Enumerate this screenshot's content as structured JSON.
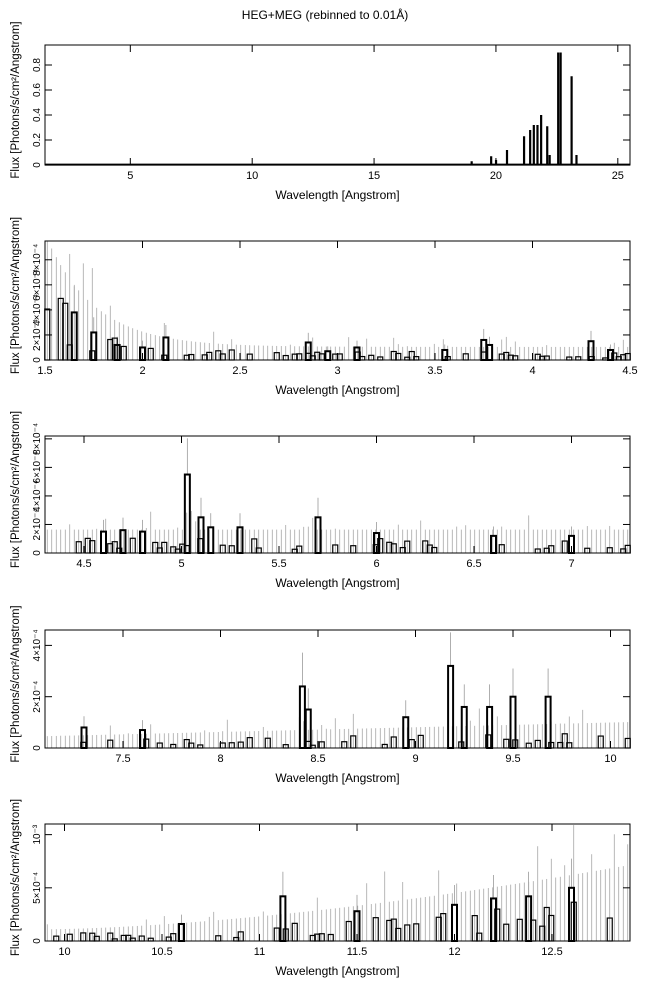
{
  "title": "HEG+MEG (rebinned to 0.01Å)",
  "chart_data": [
    {
      "type": "histogram",
      "xlabel": "Wavelength [Angstrom]",
      "ylabel": "Flux [Photons/s/cm²/Angstrom]",
      "xlim": [
        1.5,
        25.5
      ],
      "ylim": [
        0,
        0.96
      ],
      "xticks": [
        5,
        10,
        15,
        20,
        25
      ],
      "xtick_labels": [
        "5",
        "10",
        "15",
        "20",
        "25"
      ],
      "yticks": [
        0,
        0.2,
        0.4,
        0.6,
        0.8
      ],
      "ytick_labels": [
        "0",
        "0.2",
        "0.4",
        "0.6",
        "0.8"
      ],
      "baseline": 0.003,
      "peaks": [
        [
          19.0,
          0.03
        ],
        [
          19.8,
          0.07
        ],
        [
          20.0,
          0.04
        ],
        [
          20.45,
          0.12
        ],
        [
          21.15,
          0.23
        ],
        [
          21.4,
          0.28
        ],
        [
          21.55,
          0.32
        ],
        [
          21.7,
          0.32
        ],
        [
          21.85,
          0.4
        ],
        [
          22.1,
          0.31
        ],
        [
          22.2,
          0.08
        ],
        [
          22.55,
          0.9
        ],
        [
          22.65,
          0.9
        ],
        [
          23.1,
          0.71
        ],
        [
          23.3,
          0.08
        ]
      ]
    },
    {
      "type": "histogram",
      "xlabel": "Wavelength [Angstrom]",
      "ylabel": "Flux [Photons/s/cm²/Angstrom]",
      "xlim": [
        1.5,
        4.5
      ],
      "ylim": [
        0,
        0.00095
      ],
      "xticks": [
        1.5,
        2,
        2.5,
        3,
        3.5,
        4,
        4.5
      ],
      "xtick_labels": [
        "1.5",
        "2",
        "2.5",
        "3",
        "3.5",
        "4",
        "4.5"
      ],
      "yticks": [
        0,
        0.0002,
        0.0004,
        0.0006,
        0.0008
      ],
      "ytick_labels": [
        "0",
        "2×10⁻⁴",
        "4×10⁻⁴",
        "6×10⁻⁴",
        "8×10⁻⁴"
      ],
      "peaks": [
        [
          1.65,
          0.00038
        ],
        [
          1.75,
          0.00022
        ],
        [
          1.87,
          0.00012
        ],
        [
          2.0,
          0.0001
        ],
        [
          2.12,
          0.00018
        ],
        [
          2.85,
          0.00014
        ],
        [
          2.95,
          7e-05
        ],
        [
          3.1,
          0.0001
        ],
        [
          3.55,
          8e-05
        ],
        [
          3.75,
          0.00016
        ],
        [
          3.78,
          0.00012
        ],
        [
          4.3,
          0.00015
        ],
        [
          4.4,
          8e-05
        ]
      ]
    },
    {
      "type": "histogram",
      "xlabel": "Wavelength [Angstrom]",
      "ylabel": "Flux [Photons/s/cm²/Angstrom]",
      "xlim": [
        4.3,
        7.3
      ],
      "ylim": [
        0,
        0.00082
      ],
      "xticks": [
        4.5,
        5,
        5.5,
        6,
        6.5,
        7
      ],
      "xtick_labels": [
        "4.5",
        "5",
        "5.5",
        "6",
        "6.5",
        "7"
      ],
      "yticks": [
        0,
        0.0002,
        0.0004,
        0.0006,
        0.0008
      ],
      "ytick_labels": [
        "0",
        "2×10⁻⁴",
        "4×10⁻⁴",
        "6×10⁻⁴",
        "8×10⁻⁴"
      ],
      "peaks": [
        [
          4.6,
          0.00015
        ],
        [
          4.7,
          0.00016
        ],
        [
          4.8,
          0.00015
        ],
        [
          5.03,
          0.00055
        ],
        [
          5.1,
          0.00025
        ],
        [
          5.15,
          0.00018
        ],
        [
          5.3,
          0.00018
        ],
        [
          5.7,
          0.00025
        ],
        [
          6.0,
          0.00014
        ],
        [
          6.6,
          0.00012
        ],
        [
          7.0,
          0.00012
        ]
      ]
    },
    {
      "type": "histogram",
      "xlabel": "Wavelength [Angstrom]",
      "ylabel": "Flux [Photons/s/cm²/Angstrom]",
      "xlim": [
        7.1,
        10.1
      ],
      "ylim": [
        0,
        0.00046
      ],
      "xticks": [
        7.5,
        8,
        8.5,
        9,
        9.5,
        10
      ],
      "xtick_labels": [
        "7.5",
        "8",
        "8.5",
        "9",
        "9.5",
        "10"
      ],
      "yticks": [
        0,
        0.0002,
        0.0004
      ],
      "ytick_labels": [
        "0",
        "2×10⁻⁴",
        "4×10⁻⁴"
      ],
      "peaks": [
        [
          7.3,
          8e-05
        ],
        [
          7.6,
          7e-05
        ],
        [
          8.42,
          0.00024
        ],
        [
          8.45,
          0.00015
        ],
        [
          8.95,
          0.00012
        ],
        [
          9.18,
          0.00032
        ],
        [
          9.25,
          0.00016
        ],
        [
          9.38,
          0.00016
        ],
        [
          9.5,
          0.0002
        ],
        [
          9.68,
          0.0002
        ]
      ]
    },
    {
      "type": "histogram",
      "xlabel": "Wavelength [Angstrom]",
      "ylabel": "Flux [Photons/s/cm²/Angstrom]",
      "xlim": [
        9.9,
        12.9
      ],
      "ylim": [
        0,
        0.0011
      ],
      "xticks": [
        10,
        10.5,
        11,
        11.5,
        12,
        12.5
      ],
      "xtick_labels": [
        "10",
        "10.5",
        "11",
        "11.5",
        "12",
        "12.5"
      ],
      "yticks": [
        0,
        0.0005,
        0.001
      ],
      "ytick_labels": [
        "0",
        "5×10⁻⁴",
        "10⁻³"
      ],
      "peaks": [
        [
          10.6,
          0.00016
        ],
        [
          11.12,
          0.00042
        ],
        [
          11.5,
          0.00028
        ],
        [
          12.0,
          0.00034
        ],
        [
          12.2,
          0.0004
        ],
        [
          12.38,
          0.00042
        ],
        [
          12.6,
          0.0005
        ]
      ]
    }
  ]
}
